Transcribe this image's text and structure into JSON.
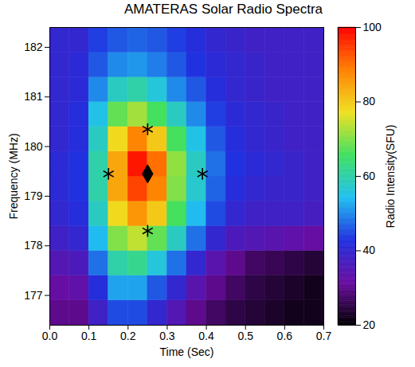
{
  "chart_data": {
    "type": "heatmap",
    "title": "AMATERAS Solar Radio Spectra",
    "x_label": "Time (Sec)",
    "y_label": "Frequency (MHz)",
    "xlim": [
      0,
      0.7
    ],
    "xticks": [
      {
        "value": 0,
        "label": "0.0"
      },
      0.1,
      0.2,
      0.3,
      0.4,
      0.5,
      0.6,
      0.7
    ],
    "ylim": [
      176.4,
      182.4
    ],
    "yticks": [
      177,
      178,
      179,
      180,
      181,
      182
    ],
    "time_edges": [
      0,
      0.05,
      0.1,
      0.15,
      0.2,
      0.25,
      0.3,
      0.35,
      0.4,
      0.45,
      0.5,
      0.55,
      0.6,
      0.65,
      0.7
    ],
    "frequency_edges": [
      176.4,
      176.9,
      177.4,
      177.9,
      178.4,
      178.9,
      179.4,
      179.9,
      180.4,
      180.9,
      181.4,
      181.9,
      182.4
    ],
    "intensity": [
      [
        30,
        30,
        38,
        45,
        45,
        40,
        35,
        30,
        27,
        25,
        24,
        23,
        22,
        22
      ],
      [
        32,
        33,
        42,
        52,
        52,
        46,
        40,
        34,
        30,
        27,
        25,
        24,
        23,
        22
      ],
      [
        35,
        36,
        48,
        60,
        62,
        56,
        48,
        40,
        34,
        30,
        27,
        26,
        25,
        24
      ],
      [
        38,
        40,
        54,
        70,
        74,
        68,
        58,
        48,
        40,
        36,
        35,
        34,
        33,
        32
      ],
      [
        40,
        42,
        58,
        78,
        86,
        80,
        66,
        54,
        45,
        40,
        38,
        38,
        38,
        37
      ],
      [
        41,
        43,
        60,
        84,
        94,
        88,
        70,
        57,
        47,
        42,
        40,
        39,
        39,
        38
      ],
      [
        41,
        43,
        60,
        84,
        98,
        90,
        71,
        58,
        48,
        43,
        41,
        40,
        39,
        38
      ],
      [
        40,
        42,
        58,
        78,
        88,
        80,
        66,
        55,
        46,
        42,
        40,
        39,
        38,
        38
      ],
      [
        40,
        42,
        55,
        68,
        72,
        66,
        58,
        50,
        44,
        41,
        40,
        39,
        38,
        38
      ],
      [
        40,
        41,
        50,
        58,
        60,
        56,
        50,
        46,
        42,
        40,
        39,
        38,
        38,
        38
      ],
      [
        40,
        41,
        46,
        50,
        51,
        49,
        46,
        43,
        41,
        40,
        39,
        38,
        38,
        38
      ],
      [
        40,
        40,
        44,
        46,
        47,
        46,
        44,
        42,
        40,
        39,
        38,
        38,
        38,
        38
      ]
    ],
    "colorbar": {
      "label": "Radio Intensity(SFU)",
      "range": [
        20,
        100
      ],
      "ticks": [
        20,
        40,
        60,
        80,
        100
      ]
    },
    "points": [
      {
        "time": 0.15,
        "frequency": 179.45,
        "marker": "asterisk"
      },
      {
        "time": 0.39,
        "frequency": 179.45,
        "marker": "asterisk"
      },
      {
        "time": 0.25,
        "frequency": 180.35,
        "marker": "asterisk"
      },
      {
        "time": 0.25,
        "frequency": 178.3,
        "marker": "asterisk"
      },
      {
        "time": 0.25,
        "frequency": 179.45,
        "marker": "diamond"
      }
    ]
  }
}
